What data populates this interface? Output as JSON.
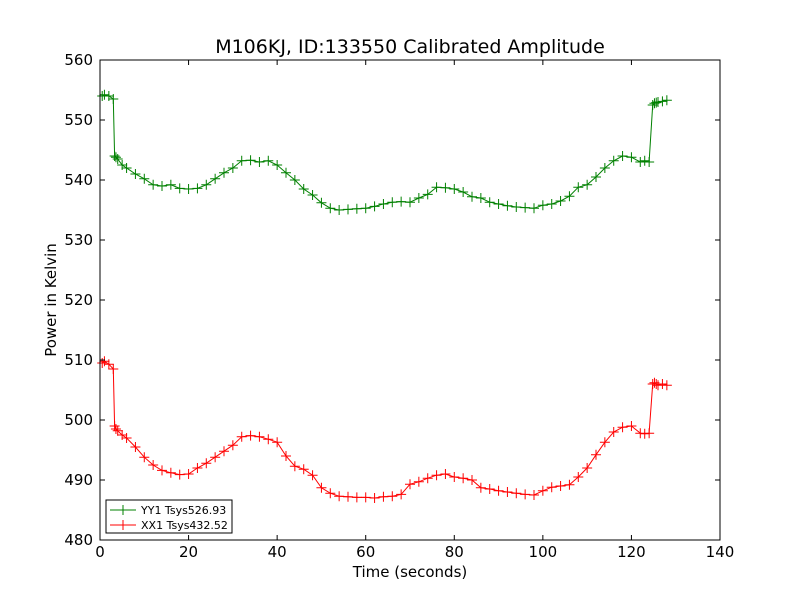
{
  "chart_data": {
    "type": "line",
    "title": "M106KJ, ID:133550 Calibrated Amplitude",
    "xlabel": "Time (seconds)",
    "ylabel": "Power in Kelvin",
    "xlim": [
      0,
      140
    ],
    "ylim": [
      480,
      560
    ],
    "xticks": [
      "0",
      "20",
      "40",
      "60",
      "80",
      "100",
      "120",
      "140"
    ],
    "yticks": [
      "480",
      "490",
      "500",
      "510",
      "520",
      "530",
      "540",
      "550",
      "560"
    ],
    "grid": false,
    "legend_position": "bottom-left",
    "marker": "plus",
    "series": [
      {
        "name": "YY1 Tsys526.93",
        "color": "#008000",
        "x": [
          0.5,
          1,
          2,
          3,
          3.3,
          3.6,
          4,
          5,
          6,
          8,
          10,
          12,
          14,
          16,
          18,
          20,
          22,
          24,
          26,
          28,
          30,
          32,
          34,
          36,
          38,
          40,
          42,
          44,
          46,
          48,
          50,
          52,
          54,
          56,
          58,
          60,
          62,
          64,
          66,
          68,
          70,
          72,
          74,
          76,
          78,
          80,
          82,
          84,
          86,
          88,
          90,
          92,
          94,
          96,
          98,
          100,
          102,
          104,
          106,
          108,
          110,
          112,
          114,
          116,
          118,
          120,
          122,
          123,
          124,
          124.8,
          125.2,
          125.6,
          126,
          127,
          128
        ],
        "y": [
          554,
          554.2,
          554,
          553.5,
          544,
          543.8,
          543.5,
          542.5,
          542,
          541,
          540.2,
          539.2,
          539,
          539.2,
          538.6,
          538.5,
          538.6,
          539.2,
          540.2,
          541.2,
          542,
          543.2,
          543.3,
          543,
          543.2,
          542.5,
          541.2,
          540,
          538.5,
          537.5,
          536.2,
          535.3,
          535,
          535.1,
          535.2,
          535.3,
          535.6,
          536,
          536.3,
          536.4,
          536.3,
          537,
          537.6,
          538.8,
          538.7,
          538.5,
          538,
          537.2,
          537,
          536.3,
          536,
          535.7,
          535.5,
          535.4,
          535.3,
          535.8,
          536,
          536.5,
          537.3,
          538.8,
          539.2,
          540.5,
          542,
          543.2,
          544,
          543.8,
          543,
          543.2,
          543,
          552.5,
          552.8,
          552.9,
          553,
          553.1,
          553.3
        ]
      },
      {
        "name": "XX1 Tsys432.52",
        "color": "#ff0000",
        "x": [
          0.5,
          1,
          2,
          3,
          3.3,
          3.6,
          4,
          5,
          6,
          8,
          10,
          12,
          14,
          16,
          18,
          20,
          22,
          24,
          26,
          28,
          30,
          32,
          34,
          36,
          38,
          40,
          42,
          44,
          46,
          48,
          50,
          52,
          54,
          56,
          58,
          60,
          62,
          64,
          66,
          68,
          70,
          72,
          74,
          76,
          78,
          80,
          82,
          84,
          86,
          88,
          90,
          92,
          94,
          96,
          98,
          100,
          102,
          104,
          106,
          108,
          110,
          112,
          114,
          116,
          118,
          120,
          122,
          123,
          124,
          124.8,
          125.2,
          125.6,
          126,
          127,
          128
        ],
        "y": [
          509.5,
          509.8,
          509.3,
          508.5,
          499,
          498.5,
          498.2,
          497.5,
          497,
          495.5,
          493.8,
          492.5,
          491.6,
          491.2,
          490.9,
          491,
          492,
          492.8,
          493.8,
          494.8,
          495.8,
          497.2,
          497.4,
          497.2,
          496.8,
          496.3,
          494,
          492.3,
          491.8,
          490.8,
          488.7,
          487.8,
          487.3,
          487.2,
          487.1,
          487.1,
          487,
          487.2,
          487.3,
          487.6,
          489.3,
          489.7,
          490.3,
          490.8,
          491,
          490.5,
          490.3,
          490,
          488.7,
          488.5,
          488.2,
          488,
          487.8,
          487.6,
          487.5,
          488.2,
          488.8,
          489,
          489.2,
          490.5,
          492,
          494.2,
          496.3,
          498,
          498.8,
          499,
          497.8,
          497.7,
          497.8,
          506,
          506.2,
          506,
          505.8,
          506,
          505.8
        ]
      }
    ]
  }
}
